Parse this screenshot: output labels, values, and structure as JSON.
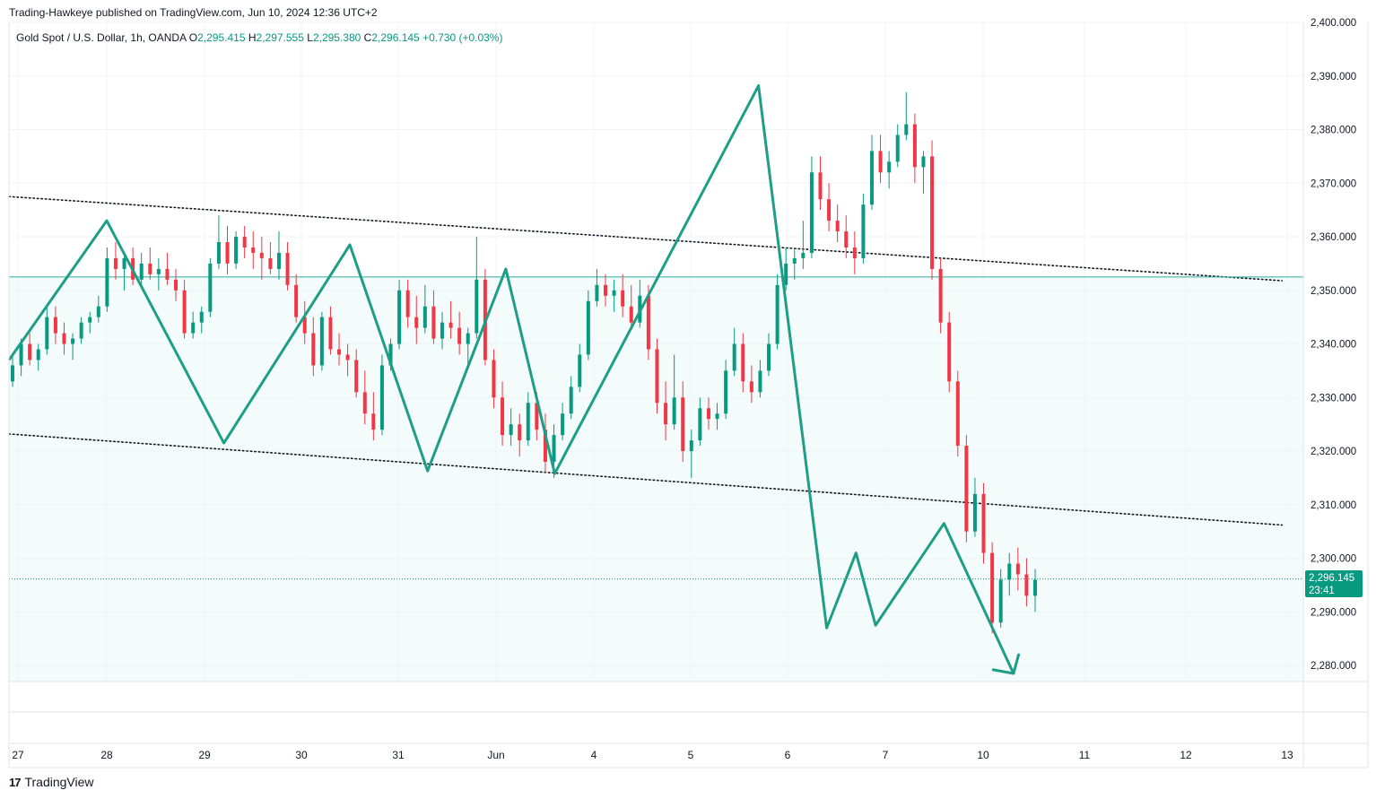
{
  "header": {
    "publisher_text": "Trading-Hawkeye published on TradingView.com, Jun 10, 2024 12:36 UTC+2"
  },
  "legend": {
    "symbol": "Gold Spot / U.S. Dollar, 1h, OANDA",
    "open_label": "O",
    "open": "2,295.415",
    "high_label": "H",
    "high": "2,297.555",
    "low_label": "L",
    "low": "2,295.380",
    "close_label": "C",
    "close": "2,296.145",
    "change": "+0.730 (+0.03%)"
  },
  "price_tag": {
    "price": "2,296.145",
    "countdown": "23:41"
  },
  "footer": {
    "brand": "TradingView",
    "brand_mark": "17"
  },
  "colors": {
    "up": "#089981",
    "down": "#f23645",
    "pattern": "#1e9e86",
    "level": "#26a69a",
    "background_fill": "#f3fbfb",
    "grid": "#f0f3fa"
  },
  "chart_data": {
    "type": "candlestick",
    "title": "Gold Spot / U.S. Dollar, 1h, OANDA",
    "ylim": [
      2277,
      2400
    ],
    "y_ticks": [
      2280,
      2290,
      2300,
      2310,
      2320,
      2330,
      2340,
      2350,
      2360,
      2370,
      2380,
      2390,
      2400
    ],
    "y_tick_labels": [
      "2,280.000",
      "2,290.000",
      "2,300.000",
      "2,310.000",
      "2,320.000",
      "2,330.000",
      "2,340.000",
      "2,350.000",
      "2,360.000",
      "2,370.000",
      "2,380.000",
      "2,390.000",
      "2,400.000"
    ],
    "x_labels": [
      "27",
      "28",
      "29",
      "30",
      "31",
      "Jun",
      "4",
      "5",
      "6",
      "7",
      "10",
      "11",
      "12",
      "13"
    ],
    "x_ticks": [
      0,
      1,
      2,
      3,
      4,
      5,
      6,
      7,
      8,
      9,
      10,
      11,
      12,
      13
    ],
    "x_unit": "trading day index (0 = 27)",
    "horizontal_level": 2352.5,
    "current_price": 2296.145,
    "trendlines": [
      {
        "style": "dotted",
        "points": [
          [
            -1.0,
            2367.5
          ],
          [
            12.95,
            2351.8
          ]
        ]
      },
      {
        "style": "dotted",
        "points": [
          [
            -1.0,
            2323.2
          ],
          [
            12.95,
            2306.2
          ]
        ]
      }
    ],
    "zigzag": [
      [
        -1.0,
        2337.0
      ],
      [
        1.0,
        2363.0
      ],
      [
        2.2,
        2321.5
      ],
      [
        3.5,
        2358.5
      ],
      [
        4.3,
        2316.3
      ],
      [
        5.1,
        2354.0
      ],
      [
        5.6,
        2315.8
      ],
      [
        7.7,
        2388.2
      ],
      [
        8.4,
        2287.0
      ],
      [
        8.7,
        2301.0
      ],
      [
        8.9,
        2287.5
      ],
      [
        9.6,
        2306.5
      ],
      [
        10.3,
        2278.5
      ]
    ],
    "arrowhead": [
      [
        10.1,
        2279.2
      ],
      [
        10.3,
        2278.5
      ],
      [
        10.35,
        2282.0
      ]
    ],
    "candles": [
      [
        2333,
        2338,
        2332,
        2336
      ],
      [
        2336,
        2341,
        2334,
        2340
      ],
      [
        2340,
        2342,
        2336,
        2337
      ],
      [
        2337,
        2340,
        2335,
        2339
      ],
      [
        2339,
        2347,
        2338,
        2345
      ],
      [
        2345,
        2347,
        2340,
        2342
      ],
      [
        2342,
        2344,
        2338,
        2340
      ],
      [
        2340,
        2342,
        2337,
        2341
      ],
      [
        2341,
        2345,
        2340,
        2344
      ],
      [
        2344,
        2346,
        2342,
        2345
      ],
      [
        2345,
        2349,
        2344,
        2347
      ],
      [
        2347,
        2358,
        2346,
        2356
      ],
      [
        2356,
        2359,
        2352,
        2354
      ],
      [
        2354,
        2357,
        2350,
        2356
      ],
      [
        2356,
        2358,
        2351,
        2352
      ],
      [
        2352,
        2357,
        2351,
        2355
      ],
      [
        2355,
        2358,
        2352,
        2353
      ],
      [
        2353,
        2356,
        2350,
        2354
      ],
      [
        2354,
        2357,
        2351,
        2352
      ],
      [
        2352,
        2354,
        2348,
        2350
      ],
      [
        2350,
        2352,
        2341,
        2342
      ],
      [
        2342,
        2346,
        2341,
        2344
      ],
      [
        2344,
        2347,
        2342,
        2346
      ],
      [
        2346,
        2356,
        2345,
        2355
      ],
      [
        2355,
        2364,
        2354,
        2359
      ],
      [
        2359,
        2362,
        2353,
        2355
      ],
      [
        2355,
        2361,
        2354,
        2360
      ],
      [
        2360,
        2362,
        2356,
        2358
      ],
      [
        2358,
        2361,
        2354,
        2357
      ],
      [
        2357,
        2360,
        2352,
        2356
      ],
      [
        2356,
        2359,
        2353,
        2354
      ],
      [
        2354,
        2361,
        2352,
        2357
      ],
      [
        2357,
        2359,
        2350,
        2351
      ],
      [
        2351,
        2353,
        2344,
        2345
      ],
      [
        2345,
        2348,
        2340,
        2342
      ],
      [
        2342,
        2345,
        2334,
        2336
      ],
      [
        2336,
        2346,
        2335,
        2345
      ],
      [
        2345,
        2347,
        2338,
        2339
      ],
      [
        2339,
        2342,
        2336,
        2338
      ],
      [
        2338,
        2340,
        2334,
        2337
      ],
      [
        2337,
        2339,
        2330,
        2331
      ],
      [
        2331,
        2335,
        2325,
        2327
      ],
      [
        2327,
        2331,
        2322,
        2324
      ],
      [
        2324,
        2338,
        2323,
        2336
      ],
      [
        2336,
        2341,
        2335,
        2340
      ],
      [
        2340,
        2352,
        2339,
        2350
      ],
      [
        2350,
        2352,
        2343,
        2345
      ],
      [
        2345,
        2349,
        2340,
        2343
      ],
      [
        2343,
        2351,
        2342,
        2347
      ],
      [
        2347,
        2350,
        2340,
        2341
      ],
      [
        2341,
        2346,
        2339,
        2344
      ],
      [
        2344,
        2348,
        2341,
        2343
      ],
      [
        2343,
        2346,
        2338,
        2340
      ],
      [
        2340,
        2343,
        2336,
        2342
      ],
      [
        2342,
        2360,
        2341,
        2352
      ],
      [
        2352,
        2354,
        2336,
        2337
      ],
      [
        2337,
        2339,
        2328,
        2330
      ],
      [
        2330,
        2333,
        2321,
        2323
      ],
      [
        2323,
        2328,
        2321,
        2325
      ],
      [
        2325,
        2327,
        2319,
        2322
      ],
      [
        2322,
        2331,
        2321,
        2329
      ],
      [
        2329,
        2331,
        2322,
        2324
      ],
      [
        2324,
        2327,
        2316,
        2318
      ],
      [
        2318,
        2325,
        2315,
        2323
      ],
      [
        2323,
        2329,
        2322,
        2327
      ],
      [
        2327,
        2334,
        2326,
        2332
      ],
      [
        2332,
        2340,
        2331,
        2338
      ],
      [
        2338,
        2350,
        2337,
        2348
      ],
      [
        2348,
        2354,
        2347,
        2351
      ],
      [
        2351,
        2353,
        2347,
        2349
      ],
      [
        2349,
        2352,
        2346,
        2350
      ],
      [
        2350,
        2353,
        2345,
        2347
      ],
      [
        2347,
        2351,
        2343,
        2344
      ],
      [
        2344,
        2352,
        2343,
        2349
      ],
      [
        2349,
        2351,
        2337,
        2339
      ],
      [
        2339,
        2341,
        2327,
        2329
      ],
      [
        2329,
        2333,
        2322,
        2325
      ],
      [
        2325,
        2338,
        2324,
        2330
      ],
      [
        2330,
        2333,
        2318,
        2320
      ],
      [
        2320,
        2324,
        2315,
        2322
      ],
      [
        2322,
        2330,
        2321,
        2328
      ],
      [
        2328,
        2330,
        2324,
        2326
      ],
      [
        2326,
        2329,
        2324,
        2327
      ],
      [
        2327,
        2337,
        2326,
        2335
      ],
      [
        2335,
        2343,
        2334,
        2340
      ],
      [
        2340,
        2342,
        2331,
        2333
      ],
      [
        2333,
        2336,
        2329,
        2331
      ],
      [
        2331,
        2337,
        2330,
        2335
      ],
      [
        2335,
        2342,
        2334,
        2340
      ],
      [
        2340,
        2353,
        2339,
        2351
      ],
      [
        2351,
        2358,
        2350,
        2355
      ],
      [
        2355,
        2358,
        2352,
        2356
      ],
      [
        2356,
        2363,
        2354,
        2357
      ],
      [
        2357,
        2375,
        2356,
        2372
      ],
      [
        2372,
        2375,
        2365,
        2367
      ],
      [
        2367,
        2370,
        2361,
        2363
      ],
      [
        2363,
        2366,
        2359,
        2361
      ],
      [
        2361,
        2364,
        2356,
        2358
      ],
      [
        2358,
        2361,
        2353,
        2356
      ],
      [
        2356,
        2368,
        2355,
        2366
      ],
      [
        2366,
        2379,
        2365,
        2376
      ],
      [
        2376,
        2379,
        2370,
        2372
      ],
      [
        2372,
        2376,
        2369,
        2374
      ],
      [
        2374,
        2381,
        2373,
        2379
      ],
      [
        2379,
        2387,
        2378,
        2381
      ],
      [
        2381,
        2383,
        2370,
        2373
      ],
      [
        2373,
        2376,
        2368,
        2375
      ],
      [
        2375,
        2378,
        2352,
        2354
      ],
      [
        2354,
        2356,
        2342,
        2344
      ],
      [
        2344,
        2346,
        2331,
        2333
      ],
      [
        2333,
        2335,
        2319,
        2321
      ],
      [
        2321,
        2323,
        2303,
        2305
      ],
      [
        2305,
        2315,
        2304,
        2312
      ],
      [
        2312,
        2314,
        2299,
        2301
      ],
      [
        2301,
        2303,
        2286,
        2288
      ],
      [
        2288,
        2298,
        2287,
        2296
      ],
      [
        2296,
        2301,
        2293,
        2299
      ],
      [
        2299,
        2302,
        2294,
        2297
      ],
      [
        2297,
        2300,
        2291,
        2293
      ],
      [
        2293,
        2298,
        2290,
        2296
      ]
    ]
  }
}
